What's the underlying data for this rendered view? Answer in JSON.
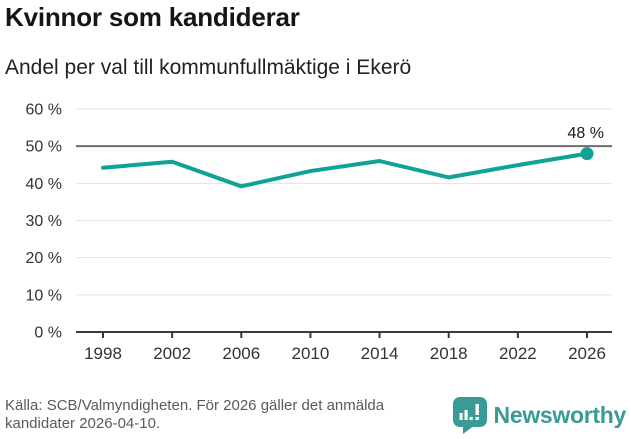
{
  "header": {
    "title": "Kvinnor som kandiderar",
    "subtitle": "Andel per val till kommunfullmäktige i Ekerö"
  },
  "chart_data": {
    "type": "line",
    "categories": [
      "1998",
      "2002",
      "2006",
      "2010",
      "2014",
      "2018",
      "2022",
      "2026"
    ],
    "values": [
      44.2,
      45.8,
      39.2,
      43.3,
      46.0,
      41.6,
      44.9,
      48.0
    ],
    "title": "Kvinnor som kandiderar",
    "subtitle": "Andel per val till kommunfullmäktige i Ekerö",
    "xlabel": "",
    "ylabel": "",
    "ylim": [
      0,
      60
    ],
    "yticks": [
      0,
      10,
      20,
      30,
      40,
      50,
      60
    ],
    "ytick_suffix": " %",
    "reference_line": 50,
    "grid": true,
    "legend": "none",
    "last_point_label": "48 %",
    "marker": "last-point-only"
  },
  "footer": {
    "source": "Källa: SCB/Valmyndigheten. För 2026 gäller det anmälda kandidater 2026-04-10.",
    "brand": "Newsworthy"
  },
  "colors": {
    "accent": "#10a296",
    "brand_teal": "#3a9a96",
    "grid_light": "#e3e3e3",
    "grid_dark": "#6d6d6d",
    "axis": "#3a3a3a",
    "tick_text": "#333333",
    "annotation_text": "#1a1a1a",
    "source_text": "#5a5a5a"
  }
}
